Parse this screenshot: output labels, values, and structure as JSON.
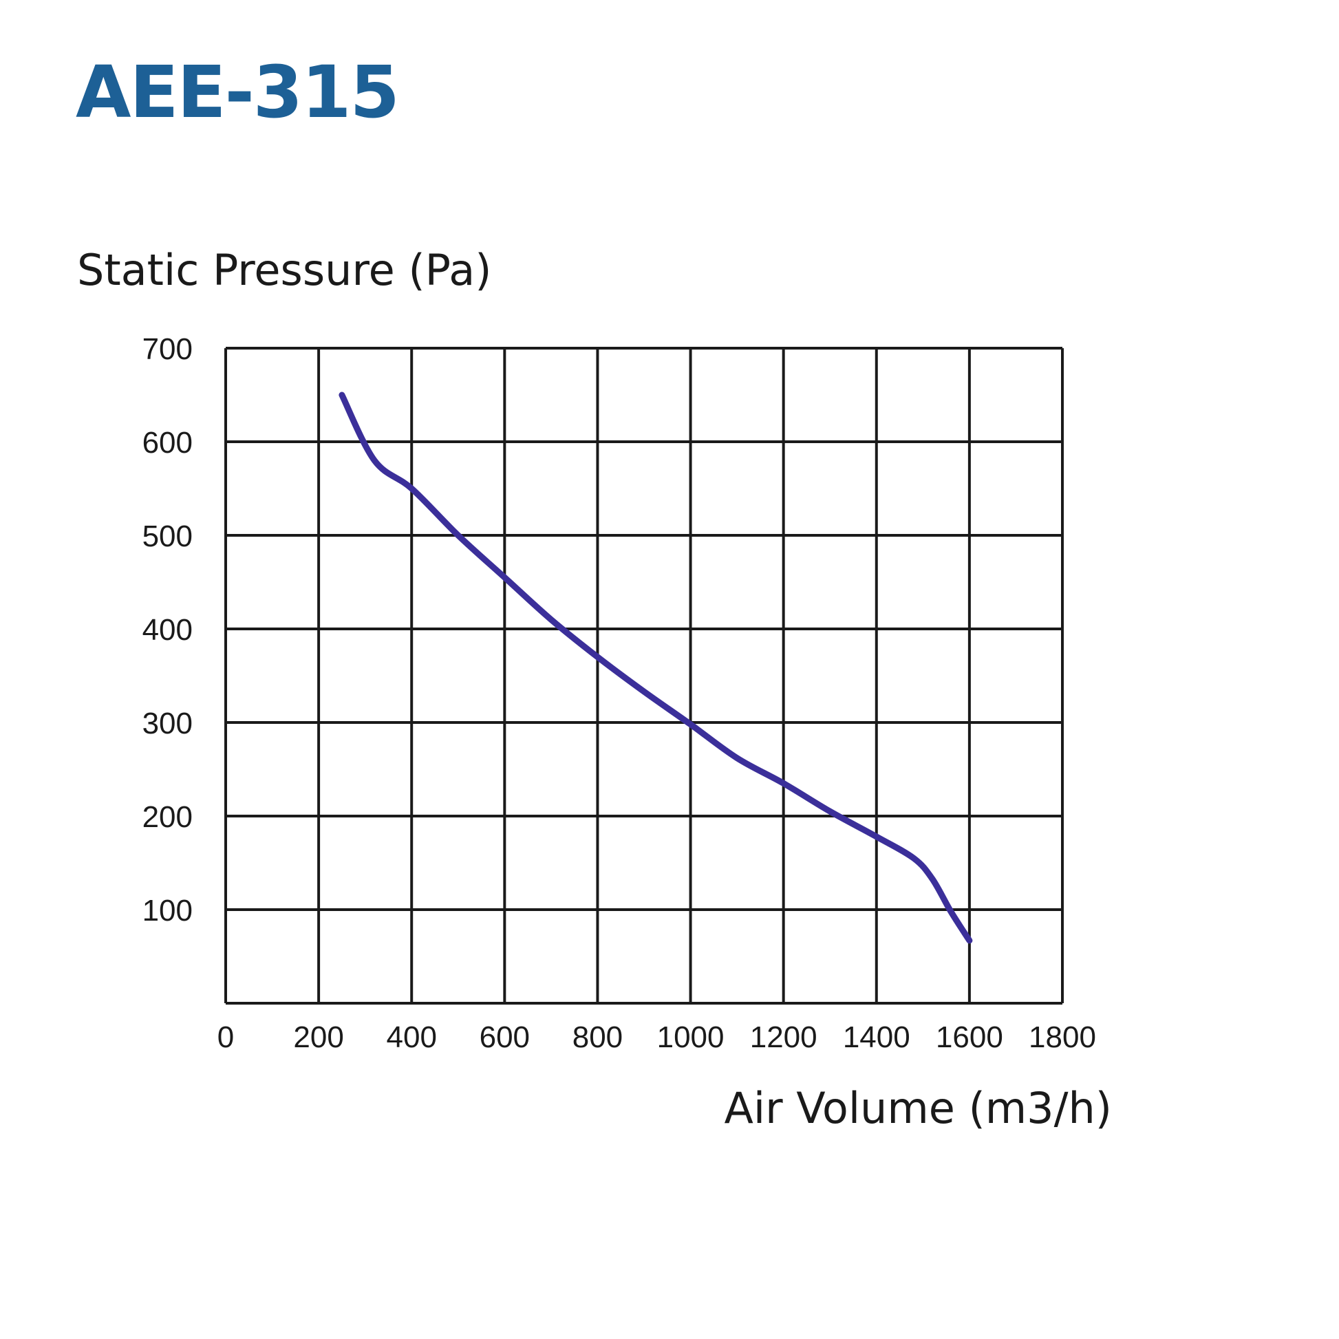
{
  "title": "AEE-315",
  "colors": {
    "title": "#1d6096",
    "curve": "#3b2f9a",
    "grid": "#1a1a1a"
  },
  "chart_data": {
    "type": "line",
    "title": "AEE-315",
    "xlabel": "Air Volume (m3/h)",
    "ylabel": "Static Pressure (Pa)",
    "xlim": [
      0,
      1800
    ],
    "ylim": [
      0,
      700
    ],
    "x_ticks": [
      0,
      200,
      400,
      600,
      800,
      1000,
      1200,
      1400,
      1600,
      1800
    ],
    "y_ticks": [
      100,
      200,
      300,
      400,
      500,
      600,
      700
    ],
    "grid": true,
    "series": [
      {
        "x": [
          250,
          320,
          400,
          500,
          600,
          700,
          800,
          900,
          1000,
          1100,
          1200,
          1300,
          1400,
          1480,
          1520,
          1560,
          1600
        ],
        "y": [
          650,
          580,
          550,
          500,
          455,
          410,
          370,
          333,
          298,
          262,
          235,
          205,
          178,
          155,
          133,
          98,
          67
        ]
      }
    ]
  }
}
